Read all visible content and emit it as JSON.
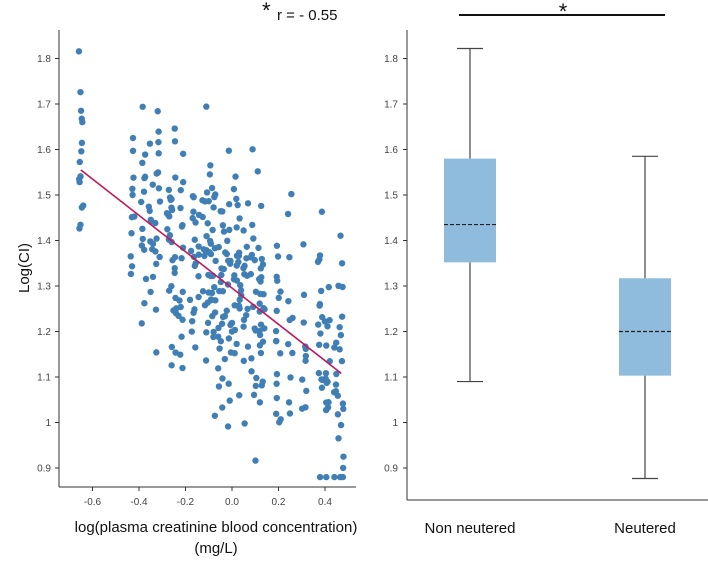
{
  "chart_data": [
    {
      "type": "scatter",
      "annotation": {
        "star": "*",
        "text": "r = - 0.55"
      },
      "xlabel_line1": "log(plasma creatinine blood concentration)",
      "xlabel_line2": "(mg/L)",
      "ylabel": "Log(CI)",
      "xlim": [
        -0.7,
        0.52
      ],
      "ylim": [
        0.86,
        1.86
      ],
      "xticks": [
        -0.6,
        -0.4,
        -0.2,
        0.0,
        0.2,
        0.4
      ],
      "xtick_labels": [
        "-0.6",
        "-0.4",
        "-0.2",
        "0.0",
        "0.2",
        "0.4"
      ],
      "yticks": [
        0.9,
        1.0,
        1.1,
        1.2,
        1.3,
        1.4,
        1.5,
        1.6,
        1.7,
        1.8
      ],
      "ytick_labels": [
        "0.9",
        "1",
        "1.1",
        "1.2",
        "1.3",
        "1.4",
        "1.5",
        "1.6",
        "1.7",
        "1.8"
      ],
      "point_color": "#3f7fb5",
      "trendline": {
        "x": [
          -0.65,
          0.47
        ],
        "y": [
          1.555,
          1.108
        ],
        "color": "#c2185b"
      },
      "x_positions": [
        -0.65,
        -0.43,
        -0.38,
        -0.35,
        -0.32,
        -0.27,
        -0.25,
        -0.22,
        -0.17,
        -0.15,
        -0.12,
        -0.1,
        -0.08,
        -0.05,
        -0.03,
        -0.01,
        0.01,
        0.03,
        0.06,
        0.09,
        0.11,
        0.13,
        0.2,
        0.25,
        0.31,
        0.38,
        0.41,
        0.45,
        0.47
      ],
      "point_summary": "approximately 400 points clustered at discrete x positions; values range 0.88 to 1.82"
    },
    {
      "type": "box",
      "ylim": [
        0.86,
        1.86
      ],
      "yticks": [
        0.9,
        1.0,
        1.1,
        1.2,
        1.3,
        1.4,
        1.5,
        1.6,
        1.7,
        1.8
      ],
      "ytick_labels": [
        "0.9",
        "1",
        "1.1",
        "1.2",
        "1.3",
        "1.4",
        "1.5",
        "1.6",
        "1.7",
        "1.8"
      ],
      "box_color": "#8fbcdc",
      "significance": "*",
      "groups": [
        {
          "name": "Non neutered",
          "min": 1.09,
          "q1": 1.352,
          "median": 1.435,
          "q3": 1.58,
          "max": 1.822
        },
        {
          "name": "Neutered",
          "min": 0.877,
          "q1": 1.103,
          "median": 1.2,
          "q3": 1.317,
          "max": 1.585
        }
      ]
    }
  ]
}
